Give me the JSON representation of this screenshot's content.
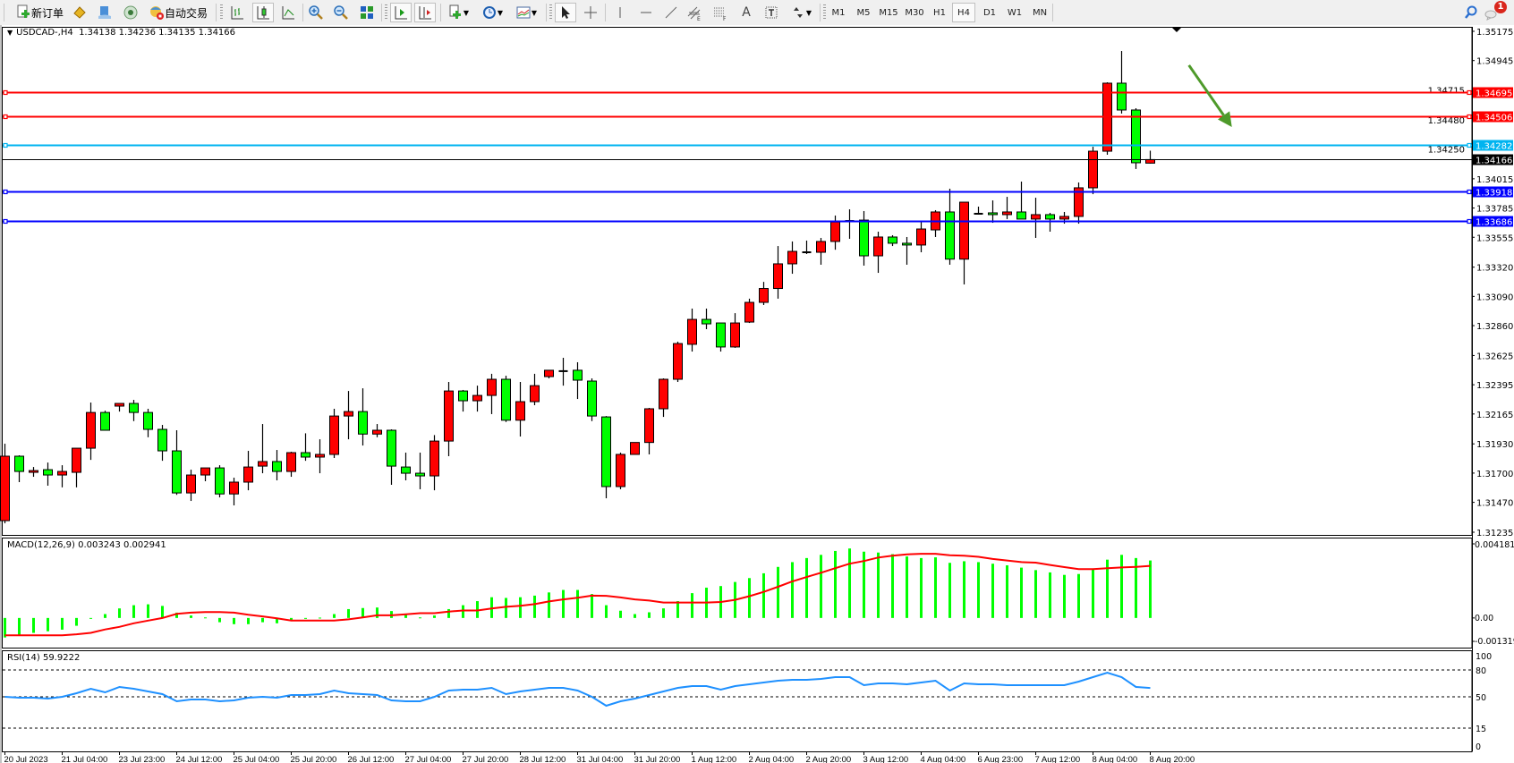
{
  "toolbar": {
    "new_order_label": "新订单",
    "auto_trading_label": "自动交易",
    "timeframes": [
      "M1",
      "M5",
      "M15",
      "M30",
      "H1",
      "H4",
      "D1",
      "W1",
      "MN"
    ],
    "active_timeframe": "H4",
    "notification_count": "1"
  },
  "chart_data": {
    "type": "candlestick",
    "symbol_header": "USDCAD-,H4  1.34138 1.34236 1.34135 1.34166",
    "colors": {
      "bull": "#ff0000",
      "bear": "#00ff00",
      "doji": "#000000",
      "background": "#ffffff"
    },
    "ylim": [
      1.31235,
      1.35175
    ],
    "y_ticks": [
      "1.35175",
      "1.34945",
      "1.34715",
      "1.34480",
      "1.34250",
      "1.34015",
      "1.33785",
      "1.33555",
      "1.33320",
      "1.33090",
      "1.32860",
      "1.32625",
      "1.32395",
      "1.32165",
      "1.31930",
      "1.31700",
      "1.31470",
      "1.31235"
    ],
    "x_labels": [
      {
        "text": "20 Jul 2023",
        "bar": 0
      },
      {
        "text": "21 Jul 04:00",
        "bar": 4
      },
      {
        "text": "23 Jul 23:00",
        "bar": 8
      },
      {
        "text": "24 Jul 12:00",
        "bar": 12
      },
      {
        "text": "25 Jul 04:00",
        "bar": 16
      },
      {
        "text": "25 Jul 20:00",
        "bar": 20
      },
      {
        "text": "26 Jul 12:00",
        "bar": 24
      },
      {
        "text": "27 Jul 04:00",
        "bar": 28
      },
      {
        "text": "27 Jul 20:00",
        "bar": 32
      },
      {
        "text": "28 Jul 12:00",
        "bar": 36
      },
      {
        "text": "31 Jul 04:00",
        "bar": 40
      },
      {
        "text": "31 Jul 20:00",
        "bar": 44
      },
      {
        "text": "1 Aug 12:00",
        "bar": 48
      },
      {
        "text": "2 Aug 04:00",
        "bar": 52
      },
      {
        "text": "2 Aug 20:00",
        "bar": 56
      },
      {
        "text": "3 Aug 12:00",
        "bar": 60
      },
      {
        "text": "4 Aug 04:00",
        "bar": 64
      },
      {
        "text": "6 Aug 23:00",
        "bar": 68
      },
      {
        "text": "7 Aug 12:00",
        "bar": 72
      },
      {
        "text": "8 Aug 04:00",
        "bar": 76
      },
      {
        "text": "8 Aug 20:00",
        "bar": 80
      }
    ],
    "candles_ohlc": [
      [
        1.31326,
        1.31931,
        1.31305,
        1.31833
      ],
      [
        1.31833,
        1.3184,
        1.31629,
        1.31713
      ],
      [
        1.31706,
        1.31748,
        1.31671,
        1.3172
      ],
      [
        1.31727,
        1.31783,
        1.31601,
        1.31685
      ],
      [
        1.31685,
        1.31762,
        1.31588,
        1.31713
      ],
      [
        1.31706,
        1.31896,
        1.31588,
        1.31896
      ],
      [
        1.31896,
        1.32255,
        1.31804,
        1.32177
      ],
      [
        1.32177,
        1.32191,
        1.32037,
        1.32037
      ],
      [
        1.32227,
        1.32248,
        1.32184,
        1.32248
      ],
      [
        1.32248,
        1.32276,
        1.32109,
        1.32177
      ],
      [
        1.32177,
        1.32206,
        1.31982,
        1.32044
      ],
      [
        1.32044,
        1.32079,
        1.31797,
        1.31875
      ],
      [
        1.31875,
        1.32037,
        1.31529,
        1.31544
      ],
      [
        1.31544,
        1.31727,
        1.31481,
        1.31685
      ],
      [
        1.31685,
        1.31741,
        1.31636,
        1.31741
      ],
      [
        1.31741,
        1.31762,
        1.31509,
        1.31536
      ],
      [
        1.31536,
        1.31664,
        1.31446,
        1.31629
      ],
      [
        1.31629,
        1.31875,
        1.31565,
        1.31748
      ],
      [
        1.31755,
        1.32086,
        1.31699,
        1.31791
      ],
      [
        1.31791,
        1.31882,
        1.31643,
        1.31713
      ],
      [
        1.31713,
        1.31868,
        1.31671,
        1.31861
      ],
      [
        1.31861,
        1.32013,
        1.31797,
        1.31826
      ],
      [
        1.31826,
        1.31966,
        1.31699,
        1.31847
      ],
      [
        1.31847,
        1.32206,
        1.31819,
        1.32149
      ],
      [
        1.32149,
        1.32346,
        1.31966,
        1.32184
      ],
      [
        1.32184,
        1.32367,
        1.31917,
        1.32007
      ],
      [
        1.32007,
        1.32086,
        1.31982,
        1.32037
      ],
      [
        1.32037,
        1.32044,
        1.31608,
        1.31755
      ],
      [
        1.31748,
        1.31861,
        1.31643,
        1.31699
      ],
      [
        1.31699,
        1.31861,
        1.31573,
        1.31678
      ],
      [
        1.31678,
        1.31999,
        1.31565,
        1.31952
      ],
      [
        1.31952,
        1.32417,
        1.31833,
        1.32346
      ],
      [
        1.32346,
        1.32354,
        1.32184,
        1.32269
      ],
      [
        1.32269,
        1.32388,
        1.32184,
        1.32311
      ],
      [
        1.32311,
        1.32481,
        1.32164,
        1.32438
      ],
      [
        1.32438,
        1.32466,
        1.32102,
        1.32116
      ],
      [
        1.32116,
        1.32417,
        1.31988,
        1.32262
      ],
      [
        1.32262,
        1.32481,
        1.32234,
        1.32388
      ],
      [
        1.32459,
        1.32509,
        1.32445,
        1.32509
      ],
      [
        1.32502,
        1.32607,
        1.32388,
        1.32502
      ],
      [
        1.32509,
        1.32572,
        1.32283,
        1.32431
      ],
      [
        1.32424,
        1.32445,
        1.32109,
        1.32149
      ],
      [
        1.32142,
        1.32149,
        1.31502,
        1.31594
      ],
      [
        1.31594,
        1.31861,
        1.31573,
        1.31847
      ],
      [
        1.31847,
        1.31941,
        1.31847,
        1.31941
      ],
      [
        1.31941,
        1.32213,
        1.31847,
        1.32206
      ],
      [
        1.32206,
        1.32445,
        1.32142,
        1.32438
      ],
      [
        1.32438,
        1.32734,
        1.32417,
        1.32719
      ],
      [
        1.32713,
        1.32994,
        1.32656,
        1.32909
      ],
      [
        1.32909,
        1.32994,
        1.32832,
        1.32874
      ],
      [
        1.32881,
        1.32881,
        1.32656,
        1.32692
      ],
      [
        1.32692,
        1.32958,
        1.32685,
        1.32881
      ],
      [
        1.32888,
        1.33072,
        1.32881,
        1.33043
      ],
      [
        1.33043,
        1.33204,
        1.33022,
        1.33152
      ],
      [
        1.33152,
        1.33486,
        1.33072,
        1.33346
      ],
      [
        1.33346,
        1.33522,
        1.33268,
        1.33444
      ],
      [
        1.33437,
        1.33529,
        1.33423,
        1.33437
      ],
      [
        1.33437,
        1.3355,
        1.33339,
        1.33522
      ],
      [
        1.33522,
        1.33726,
        1.33457,
        1.33675
      ],
      [
        1.33683,
        1.33775,
        1.33543,
        1.33683
      ],
      [
        1.3369,
        1.33761,
        1.33332,
        1.33409
      ],
      [
        1.33409,
        1.33599,
        1.33275,
        1.33557
      ],
      [
        1.33557,
        1.33571,
        1.33486,
        1.33508
      ],
      [
        1.33508,
        1.33557,
        1.33339,
        1.33494
      ],
      [
        1.33494,
        1.33683,
        1.33437,
        1.3362
      ],
      [
        1.33613,
        1.33768,
        1.33557,
        1.33754
      ],
      [
        1.33754,
        1.33937,
        1.33339,
        1.33383
      ],
      [
        1.33383,
        1.33831,
        1.33184,
        1.33831
      ],
      [
        1.3374,
        1.33796,
        1.33733,
        1.3374
      ],
      [
        1.33747,
        1.33845,
        1.33669,
        1.33733
      ],
      [
        1.33733,
        1.33873,
        1.33698,
        1.33754
      ],
      [
        1.33754,
        1.33993,
        1.33698,
        1.33698
      ],
      [
        1.33698,
        1.33866,
        1.3355,
        1.33733
      ],
      [
        1.33733,
        1.33747,
        1.33599,
        1.33698
      ],
      [
        1.33698,
        1.33754,
        1.33662,
        1.33719
      ],
      [
        1.33719,
        1.33986,
        1.33662,
        1.33944
      ],
      [
        1.33944,
        1.34267,
        1.33894,
        1.34232
      ],
      [
        1.34232,
        1.34774,
        1.34204,
        1.34767
      ],
      [
        1.34767,
        1.3502,
        1.34528,
        1.34556
      ],
      [
        1.34556,
        1.3457,
        1.34092,
        1.34141
      ],
      [
        1.34138,
        1.34236,
        1.34135,
        1.34166
      ]
    ],
    "horizontal_lines": [
      {
        "price": "1.34695",
        "color": "#ff0000"
      },
      {
        "price": "1.34506",
        "color": "#ff0000"
      },
      {
        "price": "1.34282",
        "color": "#00b4f0"
      },
      {
        "price": "1.33918",
        "color": "#0000ff"
      },
      {
        "price": "1.33686",
        "color": "#0000ff"
      }
    ],
    "current_price": "1.34166",
    "arrow_annotation": {
      "color": "#4e9a2a",
      "from": {
        "bar": 82.7,
        "price": 1.34908
      },
      "to": {
        "bar": 85.7,
        "price": 1.34422
      }
    },
    "macd": {
      "label": "MACD(12,26,9) 0.003243 0.002941",
      "ylim": [
        -0.001319,
        0.004181
      ],
      "y_ticks": [
        "0.004181",
        "0.00",
        "-0.001319"
      ],
      "histogram_color": "#00ff00",
      "signal_color": "#ff0000",
      "histogram": [
        -0.0011,
        -0.00095,
        -0.00084,
        -0.00075,
        -0.00066,
        -0.00044,
        -3e-05,
        0.00022,
        0.00054,
        0.00072,
        0.00077,
        0.00068,
        0.0003,
        0.00014,
        3e-05,
        -0.00024,
        -0.00035,
        -0.00035,
        -0.00024,
        -0.0003,
        -0.00012,
        -3e-05,
        2e-05,
        0.00022,
        0.0005,
        0.00056,
        0.00059,
        0.00039,
        0.00017,
        3e-05,
        0.00014,
        0.0005,
        0.00072,
        0.00095,
        0.00117,
        0.00113,
        0.00117,
        0.00126,
        0.00144,
        0.00158,
        0.00158,
        0.00135,
        0.00072,
        0.00041,
        0.00022,
        0.00032,
        0.00054,
        0.00095,
        0.0014,
        0.00171,
        0.0018,
        0.00203,
        0.00225,
        0.00252,
        0.00288,
        0.00315,
        0.00338,
        0.00356,
        0.00378,
        0.00392,
        0.00374,
        0.00369,
        0.0036,
        0.00347,
        0.00338,
        0.00342,
        0.00311,
        0.0032,
        0.00315,
        0.00306,
        0.00297,
        0.00284,
        0.0027,
        0.00257,
        0.00243,
        0.00248,
        0.00272,
        0.00329,
        0.00356,
        0.00338,
        0.003243
      ],
      "signal": [
        -0.00098,
        -0.00098,
        -0.00098,
        -0.00098,
        -0.00098,
        -0.00092,
        -0.00084,
        -0.00065,
        -0.0005,
        -0.0003,
        -0.00015,
        0.0,
        0.00023,
        0.0003,
        0.00033,
        0.00033,
        0.0003,
        0.00018,
        9e-05,
        -2e-05,
        -0.00015,
        -0.00015,
        -0.00015,
        -0.00015,
        -8e-05,
        3e-05,
        0.00015,
        0.00015,
        0.00021,
        0.00027,
        0.00027,
        0.00036,
        0.00042,
        0.00042,
        0.00054,
        0.00063,
        0.00069,
        0.00078,
        0.00093,
        0.00105,
        0.00114,
        0.00126,
        0.00125,
        0.00116,
        0.00105,
        0.00098,
        0.00087,
        0.00087,
        0.00087,
        0.00087,
        0.0009,
        0.00102,
        0.00123,
        0.00147,
        0.00176,
        0.00206,
        0.00231,
        0.00255,
        0.00281,
        0.00306,
        0.00321,
        0.00341,
        0.00351,
        0.00359,
        0.00362,
        0.00362,
        0.00354,
        0.00351,
        0.00345,
        0.00333,
        0.00324,
        0.00315,
        0.00312,
        0.00299,
        0.00287,
        0.00276,
        0.00276,
        0.00281,
        0.00285,
        0.00288,
        0.002941
      ]
    },
    "rsi": {
      "label": "RSI(14) 59.9222",
      "ylim": [
        0,
        100
      ],
      "y_ticks": [
        "100",
        "80",
        "50",
        "15",
        "0"
      ],
      "levels": [
        80,
        50,
        15
      ],
      "line_color": "#1e90ff",
      "values": [
        50,
        49,
        49,
        48,
        50,
        54,
        59,
        55,
        61,
        59,
        56,
        53,
        45,
        47,
        47,
        45,
        46,
        49,
        50,
        49,
        52,
        52,
        53,
        57,
        54,
        53,
        52,
        46,
        45,
        45,
        50,
        57,
        58,
        58,
        60,
        53,
        56,
        58,
        60,
        60,
        57,
        50,
        40,
        45,
        48,
        52,
        56,
        60,
        62,
        62,
        58,
        62,
        64,
        66,
        68,
        69,
        69,
        70,
        72,
        72,
        63,
        65,
        65,
        64,
        66,
        68,
        57,
        65,
        64,
        64,
        63,
        63,
        63,
        63,
        63,
        67,
        72,
        77,
        72,
        61,
        59.9222
      ]
    }
  }
}
